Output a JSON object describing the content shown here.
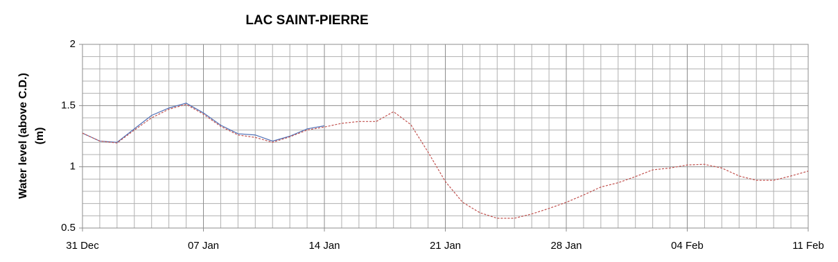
{
  "chart_data": {
    "type": "line",
    "title": "LAC SAINT-PIERRE",
    "ylabel": [
      "Water level (above C.D.)",
      "(m)"
    ],
    "x": [
      0,
      1,
      2,
      3,
      4,
      5,
      6,
      7,
      8,
      9,
      10,
      11,
      12,
      13,
      14,
      15,
      16,
      17,
      18,
      19,
      20,
      21,
      22,
      23,
      24,
      25,
      26,
      27,
      28,
      29,
      30,
      31,
      32,
      33,
      34,
      35,
      36,
      37,
      38,
      39,
      40,
      41,
      42
    ],
    "series": [
      {
        "color": "#4f6fb5",
        "dash": false,
        "values": [
          1.275,
          1.21,
          1.2,
          1.31,
          1.42,
          1.48,
          1.52,
          1.44,
          1.34,
          1.27,
          1.26,
          1.21,
          1.25,
          1.31,
          1.335,
          null,
          null,
          null,
          null,
          null,
          null,
          null,
          null,
          null,
          null,
          null,
          null,
          null,
          null,
          null,
          null,
          null,
          null,
          null,
          null,
          null,
          null,
          null,
          null,
          null,
          null,
          null,
          null
        ]
      },
      {
        "color": "#c0504d",
        "dash": true,
        "values": [
          1.275,
          1.21,
          1.195,
          1.3,
          1.4,
          1.47,
          1.51,
          1.43,
          1.33,
          1.26,
          1.24,
          1.2,
          1.245,
          1.3,
          1.325,
          1.355,
          1.37,
          1.37,
          1.45,
          1.345,
          1.12,
          0.88,
          0.71,
          0.625,
          0.58,
          0.58,
          0.615,
          0.66,
          0.71,
          0.77,
          0.835,
          0.87,
          0.92,
          0.975,
          0.99,
          1.015,
          1.02,
          0.99,
          0.925,
          0.89,
          0.89,
          0.925,
          0.965
        ]
      }
    ],
    "xlim": [
      0,
      42
    ],
    "xticks": [
      {
        "value": 0,
        "label": "31 Dec"
      },
      {
        "value": 7,
        "label": "07 Jan"
      },
      {
        "value": 14,
        "label": "14 Jan"
      },
      {
        "value": 21,
        "label": "21 Jan"
      },
      {
        "value": 28,
        "label": "28 Jan"
      },
      {
        "value": 35,
        "label": "04 Feb"
      },
      {
        "value": 42,
        "label": "11 Feb"
      }
    ],
    "ylim": [
      0.5,
      2
    ],
    "yticks": [
      0.5,
      1,
      1.5,
      2
    ],
    "grid": true
  }
}
